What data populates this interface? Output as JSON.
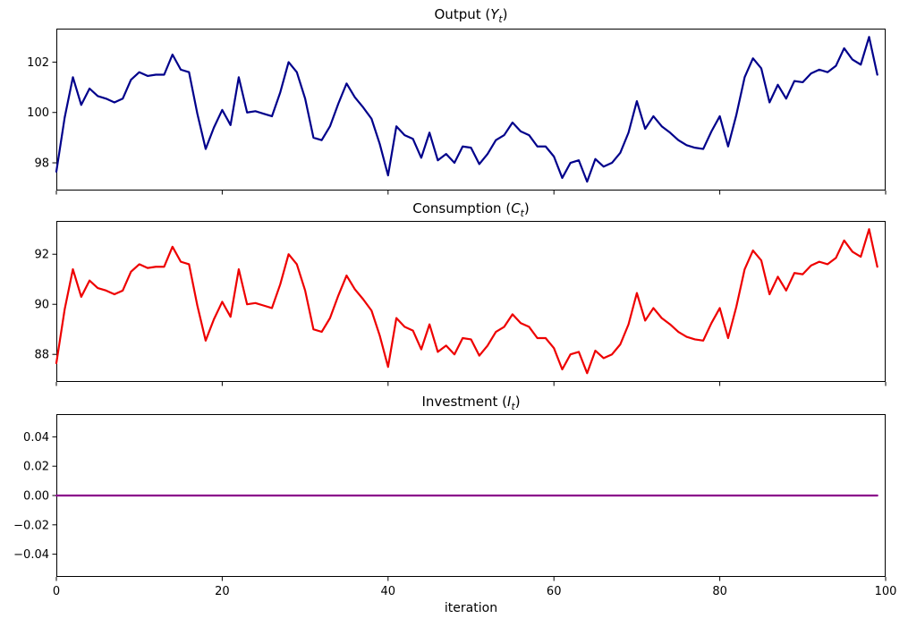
{
  "figure": {
    "background": "#ffffff"
  },
  "xlabel": "iteration",
  "chart_data": [
    {
      "type": "line",
      "title": "Output (Y_t)",
      "title_parts": {
        "prefix": "Output (",
        "var": "Y",
        "sub": "t",
        "suffix": ")"
      },
      "line_name": "output-line",
      "color": "#00008b",
      "grid": false,
      "legend": false,
      "x_start": 0,
      "xlim": [
        0,
        100
      ],
      "x_ticks": [
        0,
        20,
        40,
        60,
        80,
        100
      ],
      "ylim": [
        96.9,
        103.33
      ],
      "y_tick_values": [
        98,
        100,
        102
      ],
      "y_tick_labels": [
        "98",
        "100",
        "102"
      ],
      "values": [
        97.65,
        99.8,
        101.4,
        100.3,
        100.95,
        100.65,
        100.55,
        100.4,
        100.55,
        101.3,
        101.6,
        101.45,
        101.5,
        101.5,
        102.3,
        101.7,
        101.6,
        99.95,
        98.55,
        99.4,
        100.1,
        99.5,
        101.4,
        100.0,
        100.05,
        99.95,
        99.85,
        100.8,
        102.0,
        101.6,
        100.55,
        99.0,
        98.9,
        99.45,
        100.35,
        101.15,
        100.6,
        100.2,
        99.75,
        98.75,
        97.5,
        99.45,
        99.1,
        98.95,
        98.2,
        99.2,
        98.1,
        98.35,
        98.0,
        98.65,
        98.6,
        97.95,
        98.35,
        98.9,
        99.1,
        99.6,
        99.25,
        99.1,
        98.65,
        98.65,
        98.25,
        97.4,
        98.0,
        98.1,
        97.25,
        98.15,
        97.85,
        98.0,
        98.4,
        99.2,
        100.45,
        99.35,
        99.85,
        99.45,
        99.2,
        98.9,
        98.7,
        98.6,
        98.55,
        99.25,
        99.85,
        98.65,
        99.9,
        101.4,
        102.15,
        101.75,
        100.4,
        101.1,
        100.55,
        101.25,
        101.2,
        101.55,
        101.7,
        101.6,
        101.85,
        102.55,
        102.1,
        101.9,
        103.0,
        101.5
      ]
    },
    {
      "type": "line",
      "title": "Consumption (C_t)",
      "title_parts": {
        "prefix": "Consumption (",
        "var": "C",
        "sub": "t",
        "suffix": ")"
      },
      "line_name": "consumption-line",
      "color": "#ee0000",
      "grid": false,
      "legend": false,
      "x_start": 0,
      "xlim": [
        0,
        100
      ],
      "x_ticks": [
        0,
        20,
        40,
        60,
        80,
        100
      ],
      "ylim": [
        86.9,
        93.33
      ],
      "y_tick_values": [
        88,
        90,
        92
      ],
      "y_tick_labels": [
        "88",
        "90",
        "92"
      ],
      "values": [
        87.65,
        89.8,
        91.4,
        90.3,
        90.95,
        90.65,
        90.55,
        90.4,
        90.55,
        91.3,
        91.6,
        91.45,
        91.5,
        91.5,
        92.3,
        91.7,
        91.6,
        89.95,
        88.55,
        89.4,
        90.1,
        89.5,
        91.4,
        90.0,
        90.05,
        89.95,
        89.85,
        90.8,
        92.0,
        91.6,
        90.55,
        89.0,
        88.9,
        89.45,
        90.35,
        91.15,
        90.6,
        90.2,
        89.75,
        88.75,
        87.5,
        89.45,
        89.1,
        88.95,
        88.2,
        89.2,
        88.1,
        88.35,
        88.0,
        88.65,
        88.6,
        87.95,
        88.35,
        88.9,
        89.1,
        89.6,
        89.25,
        89.1,
        88.65,
        88.65,
        88.25,
        87.4,
        88.0,
        88.1,
        87.25,
        88.15,
        87.85,
        88.0,
        88.4,
        89.2,
        90.45,
        89.35,
        89.85,
        89.45,
        89.2,
        88.9,
        88.7,
        88.6,
        88.55,
        89.25,
        89.85,
        88.65,
        89.9,
        91.4,
        92.15,
        91.75,
        90.4,
        91.1,
        90.55,
        91.25,
        91.2,
        91.55,
        91.7,
        91.6,
        91.85,
        92.55,
        92.1,
        91.9,
        93.0,
        91.5
      ]
    },
    {
      "type": "line",
      "title": "Investment (I_t)",
      "title_parts": {
        "prefix": "Investment (",
        "var": "I",
        "sub": "t",
        "suffix": ")"
      },
      "line_name": "investment-line",
      "color": "#8a008a",
      "grid": false,
      "legend": false,
      "x_start": 0,
      "xlim": [
        0,
        100
      ],
      "x_ticks": [
        0,
        20,
        40,
        60,
        80,
        100
      ],
      "x_tick_labels": [
        "0",
        "20",
        "40",
        "60",
        "80",
        "100"
      ],
      "ylim": [
        -0.0555,
        0.0555
      ],
      "y_tick_values": [
        0.04,
        0.02,
        0.0,
        -0.02,
        -0.04
      ],
      "y_tick_labels": [
        "0.04",
        "0.02",
        "0.00",
        "−0.02",
        "−0.04"
      ],
      "values": [
        0,
        0,
        0,
        0,
        0,
        0,
        0,
        0,
        0,
        0,
        0,
        0,
        0,
        0,
        0,
        0,
        0,
        0,
        0,
        0,
        0,
        0,
        0,
        0,
        0,
        0,
        0,
        0,
        0,
        0,
        0,
        0,
        0,
        0,
        0,
        0,
        0,
        0,
        0,
        0,
        0,
        0,
        0,
        0,
        0,
        0,
        0,
        0,
        0,
        0,
        0,
        0,
        0,
        0,
        0,
        0,
        0,
        0,
        0,
        0,
        0,
        0,
        0,
        0,
        0,
        0,
        0,
        0,
        0,
        0,
        0,
        0,
        0,
        0,
        0,
        0,
        0,
        0,
        0,
        0,
        0,
        0,
        0,
        0,
        0,
        0,
        0,
        0,
        0,
        0,
        0,
        0,
        0,
        0,
        0,
        0,
        0,
        0,
        0,
        0
      ]
    }
  ]
}
